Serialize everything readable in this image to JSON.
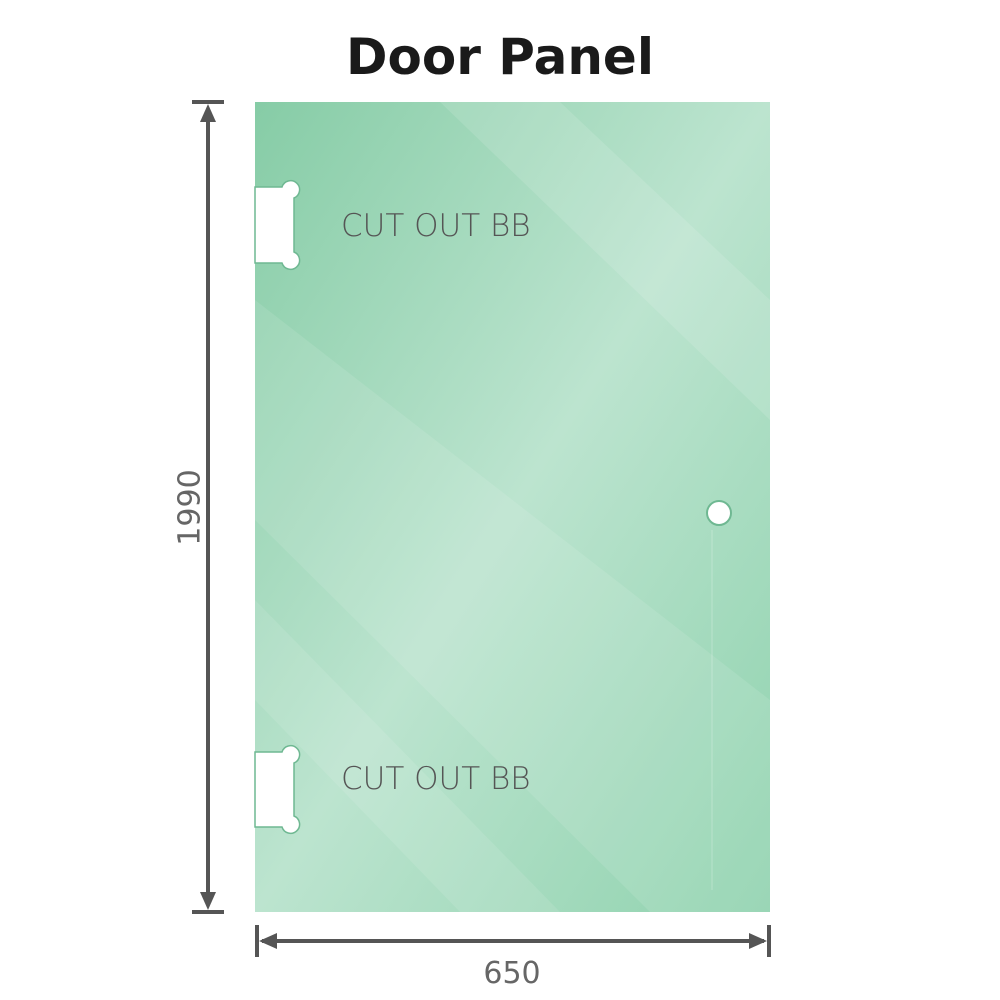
{
  "title": "Door Panel",
  "cutouts": [
    {
      "label": "CUT OUT BB"
    },
    {
      "label": "CUT OUT BB"
    }
  ],
  "dimensions": {
    "height": "1990",
    "width": "650"
  },
  "colors": {
    "glass": "#8fd1ae",
    "glass_light": "#bfe6d1",
    "dimension_line": "#555555"
  }
}
